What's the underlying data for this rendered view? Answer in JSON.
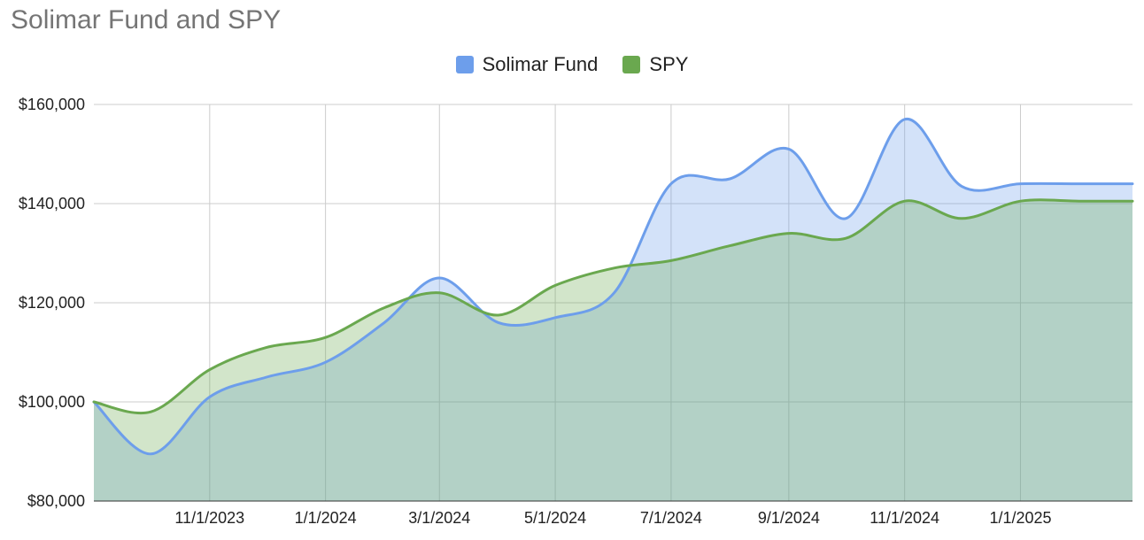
{
  "chart_data": {
    "type": "area",
    "title": "Solimar Fund and SPY",
    "xlabel": "",
    "ylabel": "",
    "legend_position": "top",
    "grid": true,
    "ylim": [
      80000,
      160000
    ],
    "xlim": [
      "2023-09-01",
      "2025-03-01"
    ],
    "x_ticks": [
      {
        "date": "2023-11-01",
        "label": "11/1/2023"
      },
      {
        "date": "2024-01-01",
        "label": "1/1/2024"
      },
      {
        "date": "2024-03-01",
        "label": "3/1/2024"
      },
      {
        "date": "2024-05-01",
        "label": "5/1/2024"
      },
      {
        "date": "2024-07-01",
        "label": "7/1/2024"
      },
      {
        "date": "2024-09-01",
        "label": "9/1/2024"
      },
      {
        "date": "2024-11-01",
        "label": "11/1/2024"
      },
      {
        "date": "2025-01-01",
        "label": "1/1/2025"
      }
    ],
    "y_ticks": [
      {
        "value": 80000,
        "label": "$80,000"
      },
      {
        "value": 100000,
        "label": "$100,000"
      },
      {
        "value": 120000,
        "label": "$120,000"
      },
      {
        "value": 140000,
        "label": "$140,000"
      },
      {
        "value": 160000,
        "label": "$160,000"
      }
    ],
    "x": [
      "2023-09-01",
      "2023-10-01",
      "2023-11-01",
      "2023-12-01",
      "2024-01-01",
      "2024-02-01",
      "2024-03-01",
      "2024-04-01",
      "2024-05-01",
      "2024-06-01",
      "2024-07-01",
      "2024-08-01",
      "2024-09-01",
      "2024-10-01",
      "2024-11-01",
      "2024-12-01",
      "2025-01-01",
      "2025-02-01",
      "2025-03-01"
    ],
    "series": [
      {
        "name": "Solimar Fund",
        "color": "#6d9eeb",
        "fill": "#c9daf8",
        "values": [
          100000,
          89500,
          101000,
          105000,
          108000,
          116000,
          125000,
          116000,
          117000,
          122000,
          144000,
          145000,
          151000,
          137000,
          157000,
          143500,
          144000,
          144000,
          144000
        ]
      },
      {
        "name": "SPY",
        "color": "#6aa84f",
        "fill": "#d9ead3",
        "values": [
          100000,
          98000,
          106500,
          111000,
          113000,
          119000,
          122000,
          117500,
          123500,
          127000,
          128500,
          131500,
          134000,
          133000,
          140500,
          137000,
          140500,
          140500,
          140500
        ]
      }
    ]
  }
}
